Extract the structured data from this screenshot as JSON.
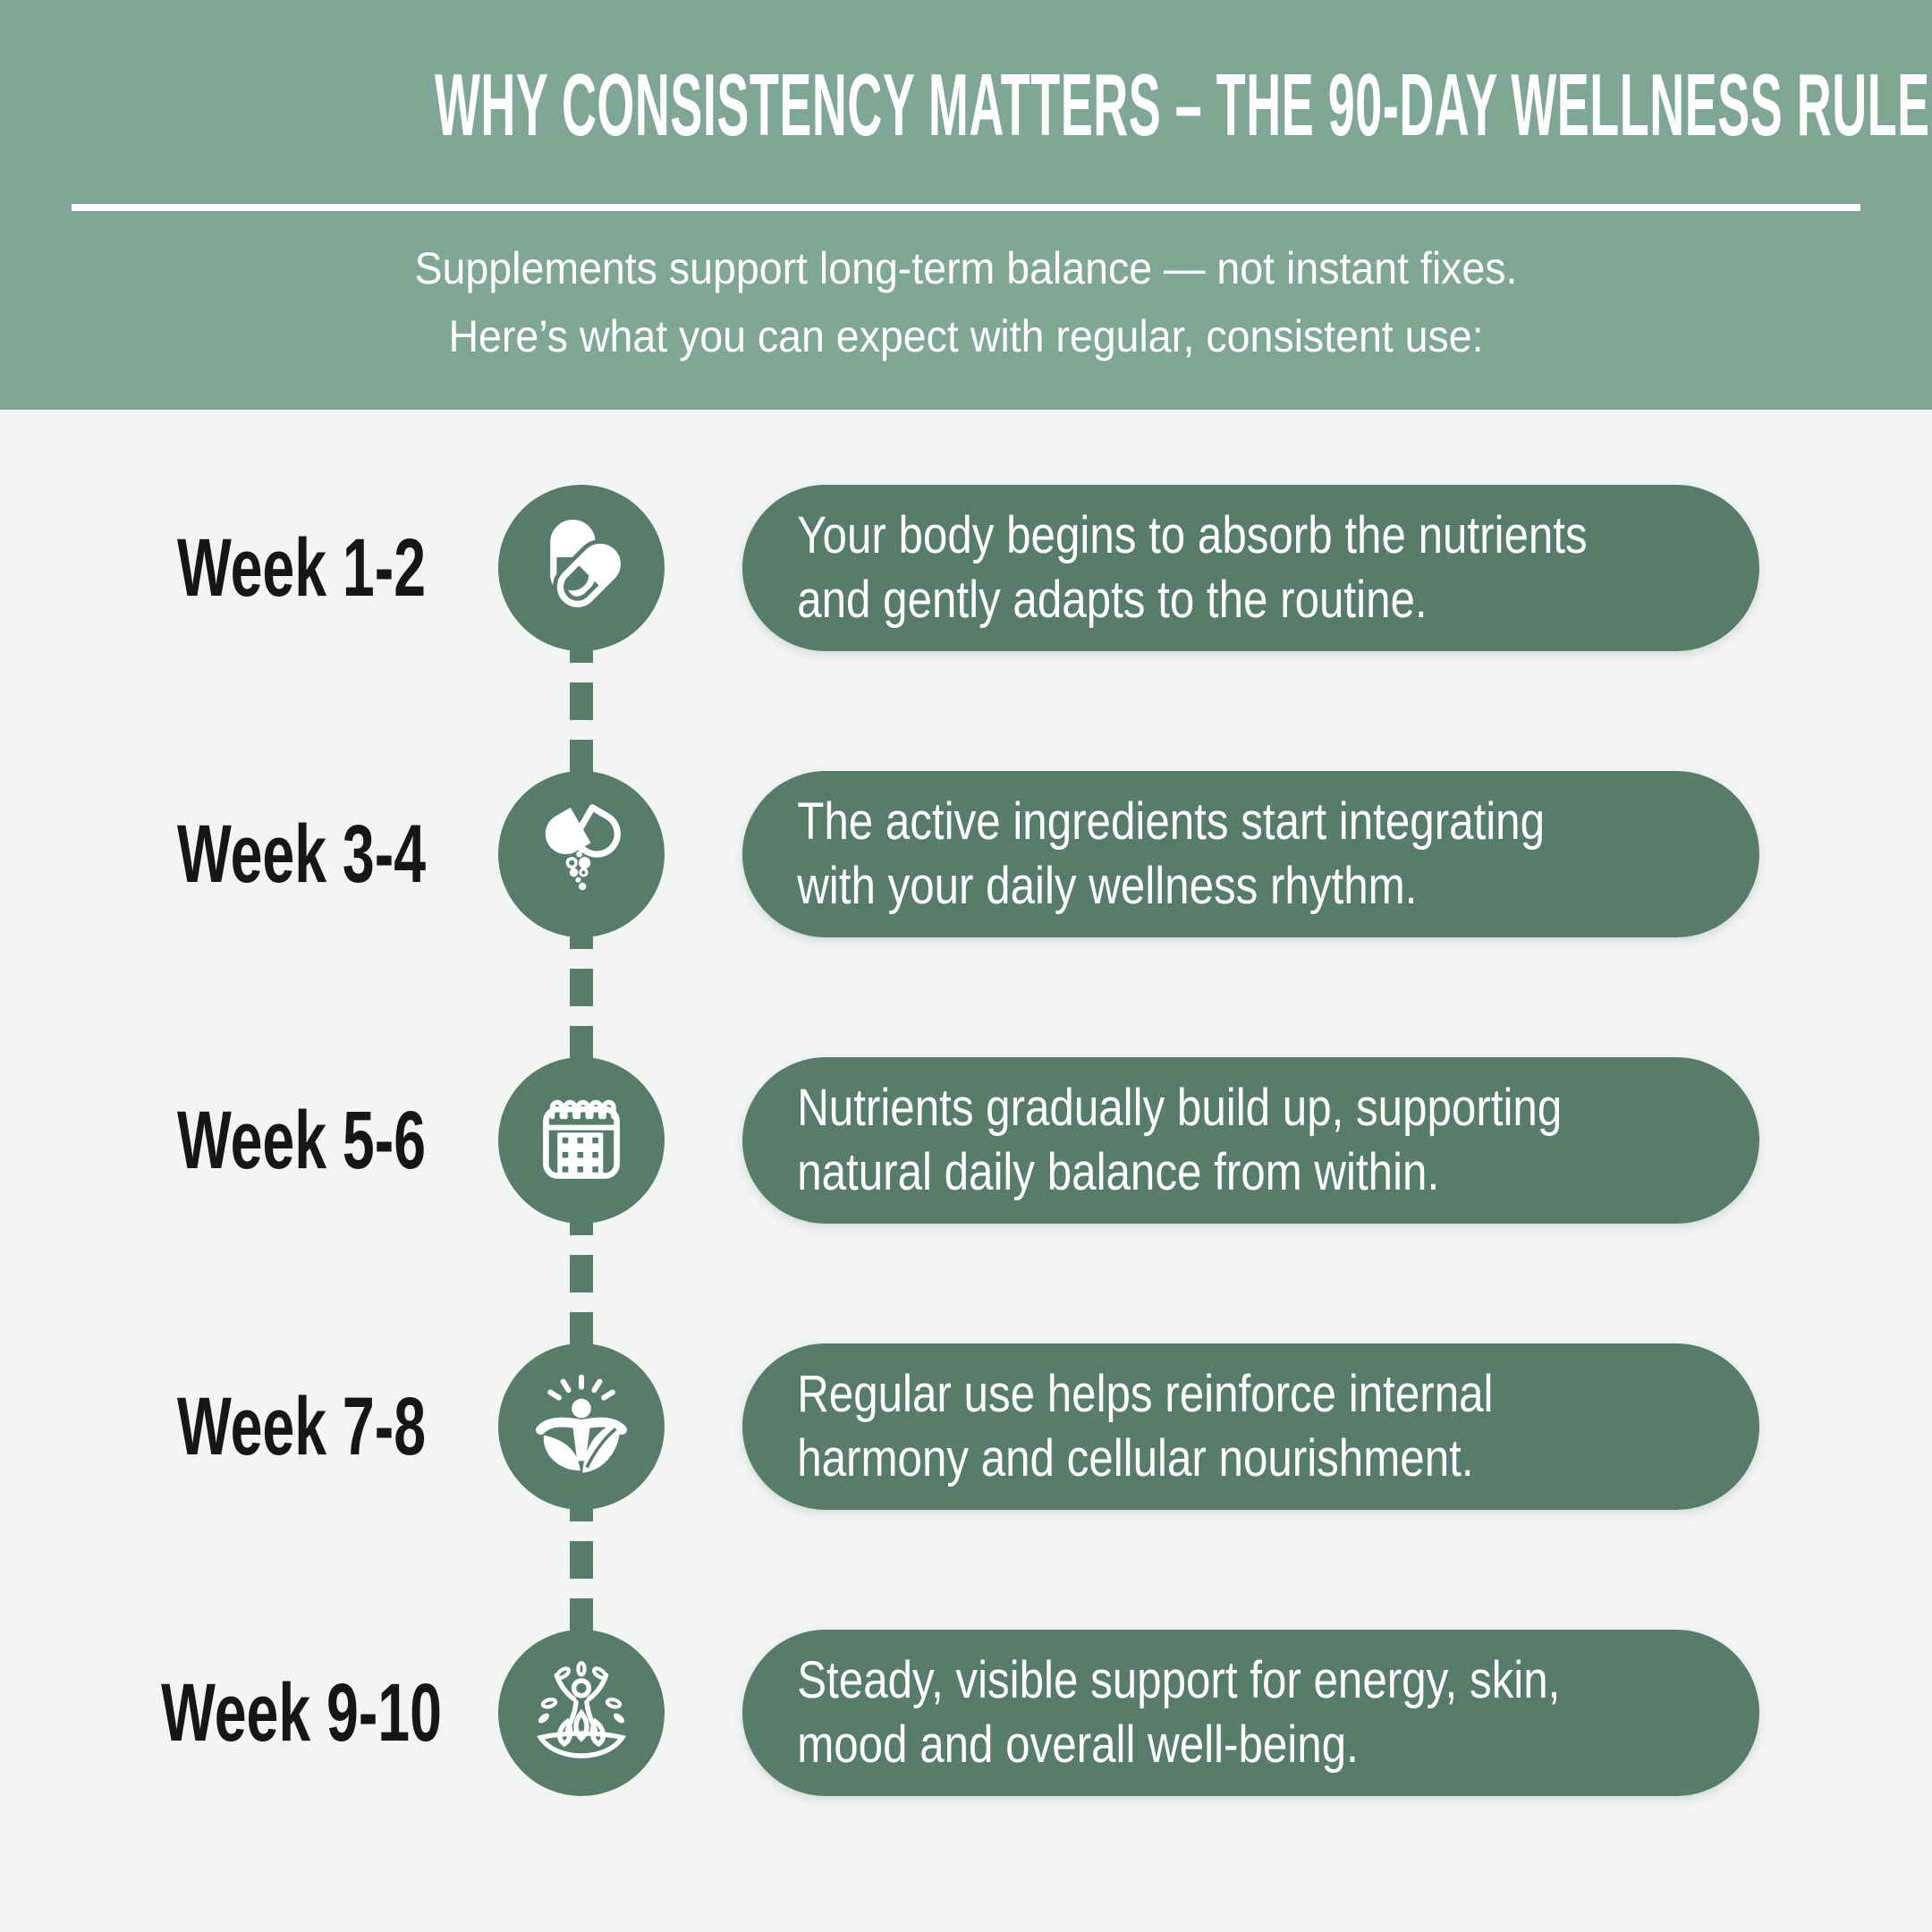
{
  "header": {
    "title": "WHY CONSISTENCY MATTERS – THE 90-DAY WELLNESS RULE",
    "subtitle_lines": [
      "Supplements support long-term balance — not instant fixes.",
      "Here’s what you can expect with regular, consistent use:"
    ]
  },
  "colors": {
    "header_bg": "#80A696",
    "accent_dark": "#577C6C",
    "page_bg": "#F3F5F3",
    "text_dark": "#161616",
    "text_light": "#FFFFFF"
  },
  "timeline": {
    "items": [
      {
        "week": "Week 1-2",
        "icon": "pills-icon",
        "lines": [
          "Your body begins to absorb the nutrients",
          "and gently adapts to the routine."
        ]
      },
      {
        "week": "Week 3-4",
        "icon": "capsule-open-icon",
        "lines": [
          "The active ingredients start integrating",
          "with your daily wellness rhythm."
        ]
      },
      {
        "week": "Week 5-6",
        "icon": "calendar-icon",
        "lines": [
          "Nutrients gradually build up, supporting",
          "natural daily balance from within."
        ]
      },
      {
        "week": "Week 7-8",
        "icon": "person-sun-leaves-icon",
        "lines": [
          "Regular use helps reinforce internal",
          "harmony and cellular nourishment."
        ]
      },
      {
        "week": "Week 9-10",
        "icon": "lotus-person-icon",
        "lines": [
          "Steady, visible support for energy, skin,",
          "mood and overall well-being."
        ]
      }
    ]
  }
}
